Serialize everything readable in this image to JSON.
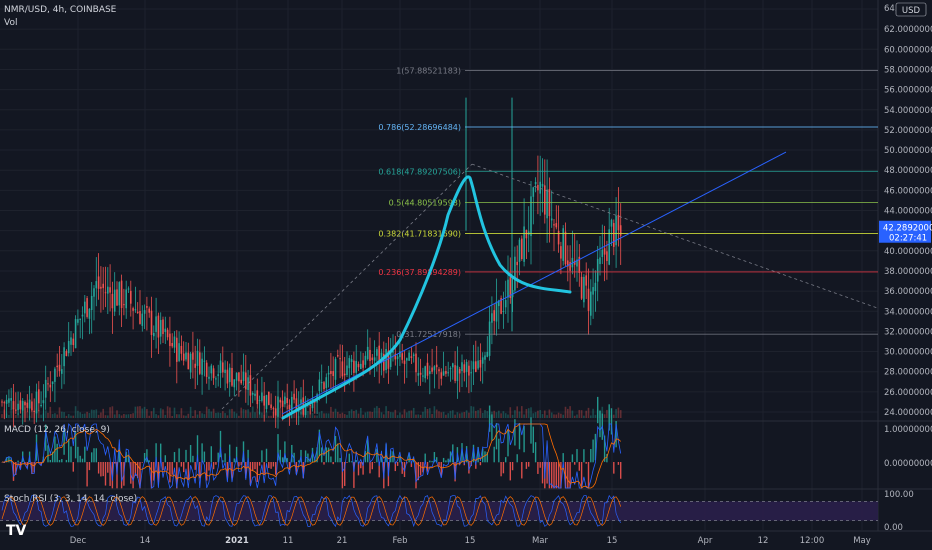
{
  "header": {
    "symbol_line": "NMR/USD, 4h, COINBASE",
    "volume_label": "Vol"
  },
  "indicators": {
    "macd_label": "MACD (12, 26, close, 9)",
    "stoch_label": "Stoch RSI (3, 3, 14, 14, close)"
  },
  "price_axis": {
    "currency_button": "USD",
    "currency_prefix": "64.",
    "ticks": [
      "62.00000000",
      "60.00000000",
      "58.00000000",
      "56.00000000",
      "54.00000000",
      "52.00000000",
      "50.00000000",
      "48.00000000",
      "46.00000000",
      "44.00000000",
      "40.00000000",
      "38.00000000",
      "36.00000000",
      "34.00000000",
      "32.00000000",
      "30.00000000",
      "28.00000000",
      "26.00000000",
      "24.00000000"
    ],
    "last_price": "42.28920000",
    "countdown": "02:27:41",
    "macd_ticks": [
      "1.00000000",
      "0.00000000"
    ],
    "stoch_ticks": [
      "100.00",
      "0.00"
    ]
  },
  "time_axis": [
    "Dec",
    "14",
    "2021",
    "11",
    "21",
    "Feb",
    "15",
    "Mar",
    "15",
    "Apr",
    "12",
    "12:00",
    "May"
  ],
  "fib_levels": [
    {
      "label": "1(57.88521183)",
      "price": 57.88521183,
      "color": "#787b86"
    },
    {
      "label": "0.786(52.28696484)",
      "price": 52.28696484,
      "color": "#64b5f6"
    },
    {
      "label": "0.618(47.89207506)",
      "price": 47.89207506,
      "color": "#26a69a"
    },
    {
      "label": "0.5(44.80519598)",
      "price": 44.80519598,
      "color": "#8bc34a"
    },
    {
      "label": "0.382(41.71831690)",
      "price": 41.7183169,
      "color": "#cddc39"
    },
    {
      "label": "0.236(37.89894289)",
      "price": 37.89894289,
      "color": "#f23645"
    },
    {
      "label": "0(31.72517918)",
      "price": 31.72517918,
      "color": "#787b86"
    }
  ],
  "colors": {
    "background": "#131722",
    "grid": "#1e222d",
    "up": "#26a69a",
    "down": "#ef5350",
    "curve": "#22c4e0",
    "trendline": "#2962ff",
    "macd": "#2962ff",
    "signal": "#ff6d00",
    "stoch_k": "#7e57c2",
    "stoch_band": "#2a1f4a",
    "axis_text": "#b2b5be",
    "last_price_bg": "#2962ff"
  },
  "branding": {
    "logo_text": "TV"
  },
  "chart_data": {
    "type": "candlestick",
    "title": "NMR/USD, 4h, COINBASE",
    "ylim": [
      23,
      64.5
    ],
    "x_span": [
      "2020-11-15",
      "2021-05-01"
    ],
    "price_path": [
      {
        "date": "2020-11-15",
        "close": 25.0
      },
      {
        "date": "2020-11-25",
        "close": 36.5
      },
      {
        "date": "2020-12-01",
        "close": 35.0
      },
      {
        "date": "2020-12-10",
        "close": 30.0
      },
      {
        "date": "2020-12-20",
        "close": 27.5
      },
      {
        "date": "2020-12-28",
        "close": 24.5
      },
      {
        "date": "2021-01-01",
        "close": 24.5
      },
      {
        "date": "2021-01-08",
        "close": 28.5
      },
      {
        "date": "2021-01-15",
        "close": 29.5
      },
      {
        "date": "2021-01-25",
        "close": 28.0
      },
      {
        "date": "2021-02-01",
        "close": 28.0
      },
      {
        "date": "2021-02-08",
        "close": 37.0
      },
      {
        "date": "2021-02-13",
        "close": 46.5
      },
      {
        "date": "2021-02-16",
        "close": 42.0
      },
      {
        "date": "2021-02-22",
        "close": 35.0
      },
      {
        "date": "2021-02-26",
        "close": 42.0
      },
      {
        "date": "2021-03-05",
        "close": 39.0
      },
      {
        "date": "2021-03-10",
        "close": 42.5
      },
      {
        "date": "2021-03-13",
        "close": 44.0
      },
      {
        "date": "2021-03-15",
        "close": 42.29
      }
    ],
    "volume_axis": false,
    "macd_ylim": [
      -1.2,
      1.2
    ],
    "stoch_ylim": [
      0,
      100
    ],
    "stoch_band": [
      20,
      80
    ],
    "grid": true
  }
}
